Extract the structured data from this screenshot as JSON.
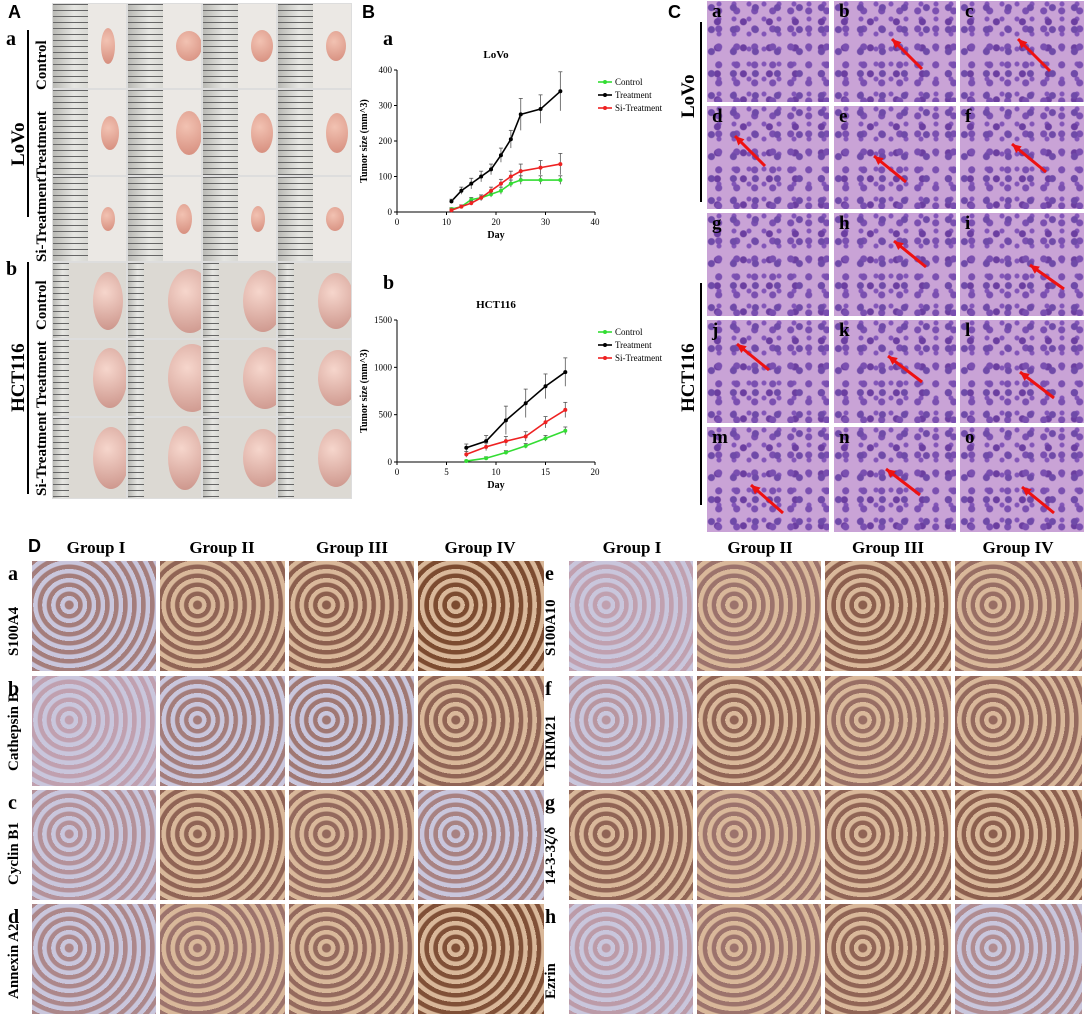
{
  "panel_letters": {
    "A": "A",
    "B": "B",
    "C": "C",
    "D": "D"
  },
  "panelA": {
    "sub_a": "a",
    "sub_b": "b",
    "cell_line_a": "LoVo",
    "cell_line_b": "HCT116",
    "rows_a": [
      "Control",
      "Treatment",
      "Si-Treatment"
    ],
    "rows_b": [
      "Control",
      "Treatment",
      "Si-Treatment"
    ]
  },
  "panelB": {
    "sub_a": "a",
    "sub_b": "b",
    "legend": [
      "Control",
      "Treatment",
      "Si-Treatment"
    ],
    "colors": {
      "control": "#33dd33",
      "treatment": "#000000",
      "si": "#ee2222"
    }
  },
  "chart_data": [
    {
      "type": "line",
      "title": "LoVo",
      "xlabel": "Day",
      "ylabel": "Tumor size (mm^3)",
      "xlim": [
        0,
        40
      ],
      "ylim": [
        0,
        400
      ],
      "xticks": [
        0,
        10,
        20,
        30,
        40
      ],
      "yticks": [
        0,
        100,
        200,
        300,
        400
      ],
      "x": [
        11,
        13,
        15,
        17,
        19,
        21,
        23,
        25,
        29,
        33
      ],
      "series": [
        {
          "name": "Control",
          "values": [
            8,
            15,
            35,
            40,
            50,
            60,
            80,
            90,
            90,
            90
          ],
          "errors": [
            4,
            5,
            6,
            8,
            8,
            10,
            10,
            12,
            12,
            12
          ]
        },
        {
          "name": "Treatment",
          "values": [
            30,
            60,
            80,
            100,
            120,
            160,
            205,
            275,
            290,
            340
          ],
          "errors": [
            6,
            10,
            15,
            15,
            15,
            20,
            25,
            45,
            40,
            55
          ]
        },
        {
          "name": "Si-Treatment",
          "values": [
            5,
            15,
            25,
            40,
            60,
            80,
            100,
            115,
            125,
            135
          ],
          "errors": [
            4,
            5,
            6,
            8,
            10,
            12,
            15,
            20,
            20,
            30
          ]
        }
      ]
    },
    {
      "type": "line",
      "title": "HCT116",
      "xlabel": "Day",
      "ylabel": "Tumor size (mm^3)",
      "xlim": [
        0,
        20
      ],
      "ylim": [
        0,
        1500
      ],
      "xticks": [
        0,
        5,
        10,
        15,
        20
      ],
      "yticks": [
        0,
        500,
        1000,
        1500
      ],
      "x": [
        7,
        9,
        11,
        13,
        15,
        17
      ],
      "series": [
        {
          "name": "Control",
          "values": [
            10,
            40,
            100,
            170,
            250,
            330
          ],
          "errors": [
            10,
            15,
            20,
            25,
            30,
            40
          ]
        },
        {
          "name": "Treatment",
          "values": [
            150,
            220,
            440,
            620,
            800,
            950
          ],
          "errors": [
            40,
            60,
            150,
            150,
            130,
            150
          ]
        },
        {
          "name": "Si-Treatment",
          "values": [
            80,
            160,
            220,
            270,
            420,
            550
          ],
          "errors": [
            30,
            40,
            50,
            50,
            60,
            80
          ]
        }
      ]
    }
  ],
  "panelC": {
    "letters": [
      "a",
      "b",
      "c",
      "d",
      "e",
      "f",
      "g",
      "h",
      "i",
      "j",
      "k",
      "l",
      "m",
      "n",
      "o"
    ],
    "label_lovo": "LoVo",
    "label_hct": "HCT116"
  },
  "panelD": {
    "left_groups": [
      "Group I",
      "Group II",
      "Group III",
      "Group IV"
    ],
    "right_groups": [
      "Group I",
      "Group II",
      "Group III",
      "Group IV"
    ],
    "left_rows": [
      {
        "letter": "a",
        "marker": "S100A4"
      },
      {
        "letter": "b",
        "marker": "Cathepsin B"
      },
      {
        "letter": "c",
        "marker": "Cyclin B1"
      },
      {
        "letter": "d",
        "marker": "Annexin A2"
      }
    ],
    "right_rows": [
      {
        "letter": "e",
        "marker": "S100A10"
      },
      {
        "letter": "f",
        "marker": "TRIM21"
      },
      {
        "letter": "g",
        "marker": "14-3-3ζ/δ"
      },
      {
        "letter": "h",
        "marker": "Ezrin"
      }
    ]
  }
}
